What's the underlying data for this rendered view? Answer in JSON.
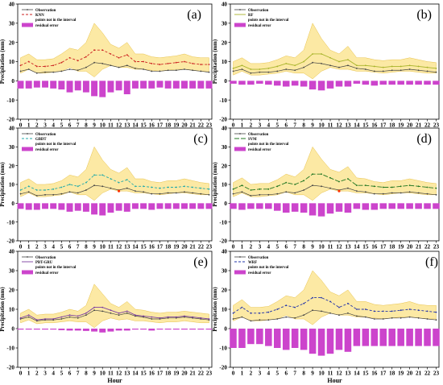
{
  "figure": {
    "y_label": "Precipitation (mm)",
    "x_label": "Hour",
    "legend": {
      "observation": "Observation",
      "outside": "points not in the interval",
      "residual": "residual error"
    },
    "colors": {
      "observation": "#444444",
      "band_fill": "#fce79a",
      "band_stroke": "#e8c24a",
      "residual": "#cc44cc",
      "outside_point": "#ff3300"
    }
  },
  "chart_data": [
    {
      "type": "line",
      "panel_label": "(a)",
      "model_name": "KNN",
      "model_color": "#cc2222",
      "model_dash": "3,2",
      "x": [
        0,
        1,
        2,
        3,
        4,
        5,
        6,
        7,
        8,
        9,
        10,
        11,
        12,
        13,
        14,
        15,
        16,
        17,
        18,
        19,
        20,
        21,
        22,
        23
      ],
      "ylim": [
        -20,
        40
      ],
      "yticks": [
        -20,
        -10,
        0,
        10,
        20,
        30,
        40
      ],
      "observation": [
        5,
        6,
        4,
        4.5,
        4.5,
        5,
        6,
        5.5,
        7,
        9.5,
        9,
        8,
        7,
        8,
        6.5,
        6,
        5,
        5,
        5.5,
        5.5,
        6,
        5.5,
        5,
        4.5
      ],
      "model": [
        8,
        10,
        7.5,
        7.5,
        8,
        9.5,
        12,
        10.5,
        12.5,
        16,
        16,
        14,
        12,
        13.5,
        10,
        10,
        9,
        8.5,
        9,
        9.5,
        10,
        9,
        8.5,
        8.5
      ],
      "band_upper": [
        12,
        14,
        11,
        11,
        11.5,
        14,
        17,
        16,
        20,
        30,
        25,
        19,
        17,
        20,
        14,
        14,
        12.5,
        12,
        12.5,
        13,
        14,
        12.5,
        12,
        12
      ],
      "band_lower": [
        4,
        6,
        4,
        4,
        4.5,
        5,
        7,
        5,
        5,
        2,
        6,
        8,
        7,
        7,
        6,
        6,
        5.5,
        5,
        5.5,
        6,
        6,
        5.5,
        5,
        5
      ],
      "residual": [
        -4,
        -4,
        -3.5,
        -3.5,
        -4,
        -4.5,
        -6,
        -5,
        -6,
        -8,
        -8.5,
        -6,
        -5,
        -7,
        -4,
        -4,
        -4,
        -3.5,
        -4,
        -4,
        -4,
        -4,
        -4,
        -4
      ],
      "outside_points": []
    },
    {
      "type": "line",
      "panel_label": "(b)",
      "model_name": "RF",
      "model_color": "#a8b42a",
      "model_dash": "",
      "x": [
        0,
        1,
        2,
        3,
        4,
        5,
        6,
        7,
        8,
        9,
        10,
        11,
        12,
        13,
        14,
        15,
        16,
        17,
        18,
        19,
        20,
        21,
        22,
        23
      ],
      "ylim": [
        -20,
        40
      ],
      "yticks": [
        -20,
        -10,
        0,
        10,
        20,
        30,
        40
      ],
      "observation": [
        5,
        6,
        4,
        4.5,
        4.5,
        5,
        6,
        5.5,
        7,
        9.5,
        9,
        8,
        7,
        8,
        6.5,
        6,
        5,
        5,
        5.5,
        5.5,
        6,
        5.5,
        5,
        4.5
      ],
      "model": [
        6.5,
        8,
        6,
        6,
        6.5,
        7.5,
        9,
        8,
        10,
        14,
        14,
        12,
        10,
        11,
        8,
        8,
        7.5,
        7,
        7.5,
        7.5,
        8,
        7.5,
        7,
        6.5
      ],
      "band_upper": [
        10,
        12,
        9,
        9,
        9.5,
        11,
        13,
        12,
        16,
        30,
        22,
        16,
        14,
        18,
        12,
        12,
        11,
        10.5,
        11,
        11,
        12,
        11,
        10,
        9.5
      ],
      "band_lower": [
        3,
        5,
        3,
        3,
        3.5,
        4,
        5,
        4,
        4,
        1,
        5,
        7,
        6,
        6,
        5,
        5,
        4.5,
        4,
        4.5,
        5,
        5,
        4.5,
        4,
        4
      ],
      "residual": [
        -1.5,
        -2,
        -2,
        -1.5,
        -2,
        -2.5,
        -3,
        -2.5,
        -3,
        -4.5,
        -5,
        -4,
        -3,
        -3,
        -1.5,
        -2,
        -2.5,
        -2,
        -2,
        -2,
        -2,
        -2,
        -2,
        -2
      ],
      "outside_points": []
    },
    {
      "type": "line",
      "panel_label": "(c)",
      "model_name": "GBDT",
      "model_color": "#22aaaa",
      "model_dash": "3,2",
      "x": [
        0,
        1,
        2,
        3,
        4,
        5,
        6,
        7,
        8,
        9,
        10,
        11,
        12,
        13,
        14,
        15,
        16,
        17,
        18,
        19,
        20,
        21,
        22,
        23
      ],
      "ylim": [
        -20,
        40
      ],
      "yticks": [
        -20,
        -10,
        0,
        10,
        20,
        30,
        40
      ],
      "observation": [
        5,
        6,
        4,
        4.5,
        4.5,
        5,
        6,
        5.5,
        7,
        9.5,
        9,
        8,
        7,
        8,
        6.5,
        6,
        5,
        5,
        5.5,
        5.5,
        6,
        5.5,
        5,
        4.5
      ],
      "model": [
        7,
        9,
        7,
        7,
        7.5,
        8.5,
        10,
        9,
        11,
        15,
        15,
        13,
        11,
        12.5,
        9,
        9,
        8.5,
        8,
        8.5,
        8.5,
        9,
        8.5,
        8,
        7.5
      ],
      "band_upper": [
        11,
        13,
        10,
        10,
        10.5,
        12,
        15,
        14,
        18,
        30,
        23,
        18,
        16,
        19,
        13,
        13,
        11.5,
        11,
        12,
        12,
        13,
        12,
        11,
        10.5
      ],
      "band_lower": [
        3.5,
        5.5,
        3.5,
        3.5,
        4,
        4.5,
        6,
        4.5,
        4.5,
        1.5,
        5.5,
        7.5,
        6.5,
        6.5,
        5.5,
        5.5,
        5,
        4.5,
        5,
        5.5,
        5.5,
        5,
        4.5,
        4.5
      ],
      "residual": [
        -3,
        -3.5,
        -3.5,
        -3,
        -3,
        -3.5,
        -4.5,
        -4,
        -4.5,
        -6,
        -6.5,
        -5,
        -4,
        -4.5,
        -3,
        -3,
        -3.5,
        -3,
        -3,
        -3,
        -3,
        -3,
        -3,
        -3
      ],
      "outside_points": [
        [
          12,
          6.5
        ]
      ]
    },
    {
      "type": "line",
      "panel_label": "(d)",
      "model_name": "SVM",
      "model_color": "#227722",
      "model_dash": "6,2",
      "x": [
        0,
        1,
        2,
        3,
        4,
        5,
        6,
        7,
        8,
        9,
        10,
        11,
        12,
        13,
        14,
        15,
        16,
        17,
        18,
        19,
        20,
        21,
        22,
        23
      ],
      "ylim": [
        -20,
        40
      ],
      "yticks": [
        -20,
        -10,
        0,
        10,
        20,
        30,
        40
      ],
      "observation": [
        5,
        6,
        4,
        4.5,
        4.5,
        5,
        6,
        5.5,
        7,
        9.5,
        9,
        8,
        7,
        8,
        6.5,
        6,
        5,
        5,
        5.5,
        5.5,
        6,
        5.5,
        5,
        4.5
      ],
      "model": [
        7.5,
        9.5,
        7,
        7.5,
        7.5,
        9,
        11,
        10,
        12,
        15.5,
        15.5,
        13.5,
        11.5,
        13,
        9.5,
        9.5,
        9,
        8.5,
        8.5,
        9,
        9.5,
        9,
        8.5,
        8
      ],
      "band_upper": [
        11,
        13.5,
        10,
        10.5,
        10.5,
        12.5,
        15.5,
        14,
        18,
        30,
        23.5,
        18,
        16.5,
        19.5,
        13.5,
        13,
        11.5,
        11,
        12,
        12,
        13,
        12,
        11,
        10.5
      ],
      "band_lower": [
        3.5,
        5.5,
        3.5,
        3.5,
        4,
        4.5,
        6,
        4.5,
        4.5,
        1.5,
        5.5,
        7.5,
        6.5,
        6.5,
        5.5,
        5.5,
        5,
        4.5,
        5,
        5.5,
        5.5,
        5,
        4.5,
        4.5
      ],
      "residual": [
        -3,
        -3.5,
        -3,
        -3,
        -3,
        -4,
        -5,
        -4.5,
        -5,
        -6.5,
        -7,
        -5.5,
        -4.5,
        -5,
        -3,
        -3.5,
        -3.5,
        -3,
        -3,
        -3,
        -3,
        -3,
        -3,
        -3
      ],
      "outside_points": [
        [
          12,
          6.5
        ]
      ]
    },
    {
      "type": "line",
      "panel_label": "(e)",
      "model_name": "PBT-GRU",
      "model_color": "#7b3fa0",
      "model_dash": "",
      "x": [
        0,
        1,
        2,
        3,
        4,
        5,
        6,
        7,
        8,
        9,
        10,
        11,
        12,
        13,
        14,
        15,
        16,
        17,
        18,
        19,
        20,
        21,
        22,
        23
      ],
      "ylim": [
        -20,
        40
      ],
      "yticks": [
        -20,
        -10,
        0,
        10,
        20,
        30,
        40
      ],
      "observation": [
        5,
        6,
        4,
        4.5,
        4.5,
        5,
        6,
        5.5,
        7,
        9.5,
        9,
        8,
        7,
        8,
        6.5,
        6,
        5,
        5,
        5.5,
        5.5,
        6,
        5.5,
        5,
        4.5
      ],
      "model": [
        5.5,
        7,
        4.5,
        5,
        5,
        6,
        7,
        6.5,
        8,
        11,
        11,
        9.5,
        8,
        9,
        7,
        6.5,
        6,
        5.5,
        6,
        6,
        6.5,
        6,
        5.5,
        5
      ],
      "band_upper": [
        8,
        10,
        7,
        7.5,
        7.5,
        8.5,
        10,
        9,
        12,
        23,
        18,
        13,
        11,
        14,
        10,
        9.5,
        8.5,
        8,
        8.5,
        8.5,
        9,
        8.5,
        8,
        7.5
      ],
      "band_lower": [
        3,
        4.5,
        2.5,
        3,
        3,
        3.5,
        4,
        3.5,
        3.5,
        0.5,
        4,
        5.5,
        4.5,
        5,
        4,
        4,
        3.5,
        3,
        3.5,
        3.5,
        4,
        3.5,
        3,
        3
      ],
      "residual": [
        -0.5,
        -0.5,
        -0.5,
        -0.5,
        -0.5,
        -0.8,
        -1,
        -1,
        -1.2,
        -1.5,
        -2,
        -1.5,
        -1,
        -1,
        -0.5,
        -0.5,
        -1,
        -0.5,
        -0.5,
        -0.5,
        -0.5,
        -0.5,
        -0.5,
        -0.5
      ],
      "outside_points": []
    },
    {
      "type": "line",
      "panel_label": "(f)",
      "model_name": "WRF",
      "model_color": "#2233aa",
      "model_dash": "3,2",
      "x": [
        0,
        1,
        2,
        3,
        4,
        5,
        6,
        7,
        8,
        9,
        10,
        11,
        12,
        13,
        14,
        15,
        16,
        17,
        18,
        19,
        20,
        21,
        22,
        23
      ],
      "ylim": [
        -20,
        40
      ],
      "yticks": [
        -20,
        -10,
        0,
        10,
        20,
        30,
        40
      ],
      "observation": [
        5,
        6,
        4,
        4.5,
        4.5,
        5,
        6,
        5.5,
        7,
        9.5,
        9,
        8,
        7,
        8,
        6.5,
        6,
        5,
        5,
        5.5,
        5.5,
        6,
        5.5,
        5,
        4.5
      ],
      "model": [
        8,
        11,
        8,
        8,
        8.5,
        10,
        12,
        11,
        13,
        16,
        16,
        14,
        11,
        13,
        10,
        10,
        9,
        9,
        9,
        9.5,
        10,
        9.5,
        9,
        8.5
      ],
      "band_upper": [
        12,
        15,
        11,
        11,
        11.5,
        14,
        17,
        16,
        20,
        30,
        25,
        19,
        17,
        20,
        14,
        14,
        12.5,
        12,
        12.5,
        13,
        14,
        12.5,
        12,
        12
      ],
      "band_lower": [
        4,
        6,
        4,
        4,
        4.5,
        5,
        7,
        5,
        5,
        2,
        6,
        8,
        7,
        7,
        6,
        6,
        5.5,
        5,
        5.5,
        6,
        6,
        5.5,
        5,
        5
      ],
      "residual": [
        -10,
        -10,
        -8,
        -8,
        -9,
        -10,
        -11,
        -10,
        -11,
        -13,
        -14,
        -13,
        -11,
        -12,
        -9,
        -9,
        -9,
        -9,
        -9,
        -9,
        -9,
        -9,
        -9,
        -9
      ],
      "outside_points": []
    }
  ]
}
